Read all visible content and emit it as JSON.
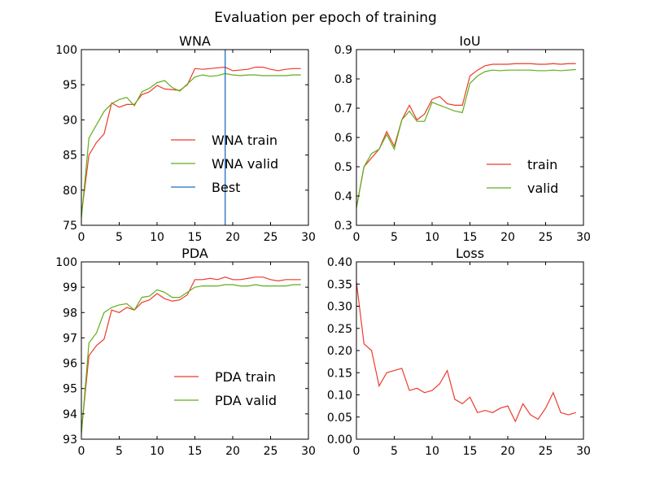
{
  "figure": {
    "title": "Evaluation per epoch of training"
  },
  "colors": {
    "train": "#ee3b2b",
    "valid": "#5fae1a",
    "best": "#1f6fbf"
  },
  "chart_data": [
    {
      "id": "wna",
      "type": "line",
      "title": "WNA",
      "xlim": [
        0,
        30
      ],
      "ylim": [
        75,
        100
      ],
      "xticks": [
        "0",
        "5",
        "10",
        "15",
        "20",
        "25",
        "30"
      ],
      "yticks": [
        "75",
        "80",
        "85",
        "90",
        "95",
        "100"
      ],
      "legend": "lower-right",
      "vline": {
        "name": "Best",
        "x": 19
      },
      "series": [
        {
          "name": "WNA train",
          "color": "train",
          "values": [
            76.5,
            85.0,
            86.8,
            88.0,
            92.4,
            91.8,
            92.2,
            92.2,
            93.6,
            94.0,
            94.9,
            94.4,
            94.3,
            94.2,
            95.0,
            97.3,
            97.2,
            97.3,
            97.4,
            97.5,
            97.0,
            97.1,
            97.2,
            97.5,
            97.5,
            97.2,
            97.0,
            97.2,
            97.3,
            97.3
          ]
        },
        {
          "name": "WNA valid",
          "color": "valid",
          "values": [
            76.0,
            87.4,
            89.3,
            91.2,
            92.3,
            92.9,
            93.2,
            92.0,
            94.0,
            94.5,
            95.3,
            95.6,
            94.6,
            94.1,
            95.1,
            96.1,
            96.4,
            96.2,
            96.3,
            96.6,
            96.4,
            96.3,
            96.4,
            96.4,
            96.3,
            96.3,
            96.3,
            96.3,
            96.4,
            96.4
          ]
        }
      ]
    },
    {
      "id": "iou",
      "type": "line",
      "title": "IoU",
      "xlim": [
        0,
        30
      ],
      "ylim": [
        0.3,
        0.9
      ],
      "xticks": [
        "0",
        "5",
        "10",
        "15",
        "20",
        "25",
        "30"
      ],
      "yticks": [
        "0.3",
        "0.4",
        "0.5",
        "0.6",
        "0.7",
        "0.8",
        "0.9"
      ],
      "legend": "lower-right",
      "series": [
        {
          "name": "train",
          "color": "train",
          "values": [
            0.36,
            0.5,
            0.53,
            0.56,
            0.62,
            0.57,
            0.66,
            0.71,
            0.66,
            0.68,
            0.73,
            0.74,
            0.715,
            0.71,
            0.71,
            0.81,
            0.83,
            0.845,
            0.85,
            0.85,
            0.85,
            0.852,
            0.852,
            0.852,
            0.85,
            0.85,
            0.852,
            0.85,
            0.852,
            0.852
          ]
        },
        {
          "name": "valid",
          "color": "valid",
          "values": [
            0.36,
            0.5,
            0.545,
            0.56,
            0.61,
            0.56,
            0.66,
            0.69,
            0.655,
            0.655,
            0.72,
            0.71,
            0.7,
            0.69,
            0.685,
            0.785,
            0.81,
            0.825,
            0.83,
            0.828,
            0.83,
            0.83,
            0.83,
            0.83,
            0.828,
            0.828,
            0.83,
            0.828,
            0.83,
            0.832
          ]
        }
      ]
    },
    {
      "id": "pda",
      "type": "line",
      "title": "PDA",
      "xlim": [
        0,
        30
      ],
      "ylim": [
        93,
        100
      ],
      "xticks": [
        "0",
        "5",
        "10",
        "15",
        "20",
        "25",
        "30"
      ],
      "yticks": [
        "93",
        "94",
        "95",
        "96",
        "97",
        "98",
        "99",
        "100"
      ],
      "legend": "lower-right",
      "series": [
        {
          "name": "PDA train",
          "color": "train",
          "values": [
            93.3,
            96.3,
            96.7,
            96.95,
            98.1,
            98.0,
            98.2,
            98.1,
            98.4,
            98.5,
            98.75,
            98.55,
            98.45,
            98.5,
            98.7,
            99.3,
            99.3,
            99.35,
            99.3,
            99.4,
            99.3,
            99.3,
            99.35,
            99.4,
            99.4,
            99.3,
            99.25,
            99.3,
            99.3,
            99.3
          ]
        },
        {
          "name": "PDA valid",
          "color": "valid",
          "values": [
            93.2,
            96.8,
            97.2,
            98.0,
            98.2,
            98.3,
            98.35,
            98.1,
            98.6,
            98.65,
            98.9,
            98.8,
            98.6,
            98.6,
            98.8,
            99.0,
            99.05,
            99.05,
            99.05,
            99.1,
            99.1,
            99.05,
            99.05,
            99.1,
            99.05,
            99.05,
            99.05,
            99.05,
            99.1,
            99.1
          ]
        }
      ]
    },
    {
      "id": "loss",
      "type": "line",
      "title": "Loss",
      "xlim": [
        0,
        30
      ],
      "ylim": [
        0,
        0.4
      ],
      "xticks": [
        "0",
        "5",
        "10",
        "15",
        "20",
        "25",
        "30"
      ],
      "yticks": [
        "0.00",
        "0.05",
        "0.10",
        "0.15",
        "0.20",
        "0.25",
        "0.30",
        "0.35",
        "0.40"
      ],
      "series": [
        {
          "color": "train",
          "values": [
            0.355,
            0.215,
            0.2,
            0.12,
            0.15,
            0.155,
            0.16,
            0.11,
            0.115,
            0.105,
            0.11,
            0.125,
            0.155,
            0.09,
            0.08,
            0.095,
            0.06,
            0.065,
            0.06,
            0.07,
            0.075,
            0.04,
            0.08,
            0.055,
            0.045,
            0.07,
            0.105,
            0.06,
            0.055,
            0.06
          ]
        }
      ]
    }
  ]
}
